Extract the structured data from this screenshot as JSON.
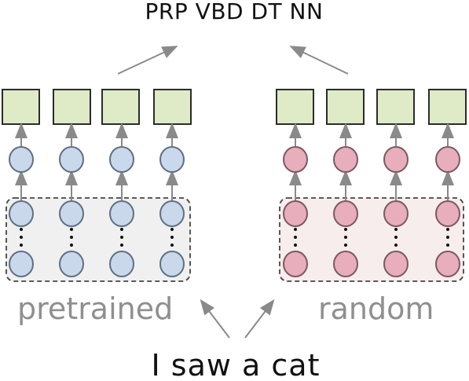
{
  "title_text": "PRP VBD DT NN",
  "left_panel": {
    "label": "pretrained",
    "box_fill": "#f0f0f0",
    "node_fill": "#c9d8ea",
    "node_stroke": "#5f6f82",
    "cell_fill": "#dfeac7",
    "cell_stroke": "#2c2c2c"
  },
  "right_panel": {
    "label": "random",
    "box_fill": "#f8eded",
    "node_fill": "#e8aebc",
    "node_stroke": "#7a5962",
    "cell_fill": "#dfeac7",
    "cell_stroke": "#2c2c2c"
  },
  "sentence": "I saw a cat",
  "colors": {
    "arrow": "#8a8a8a",
    "dashed_border": "#444444",
    "title_text": "#111111",
    "label_text": "#8f8f8f"
  }
}
